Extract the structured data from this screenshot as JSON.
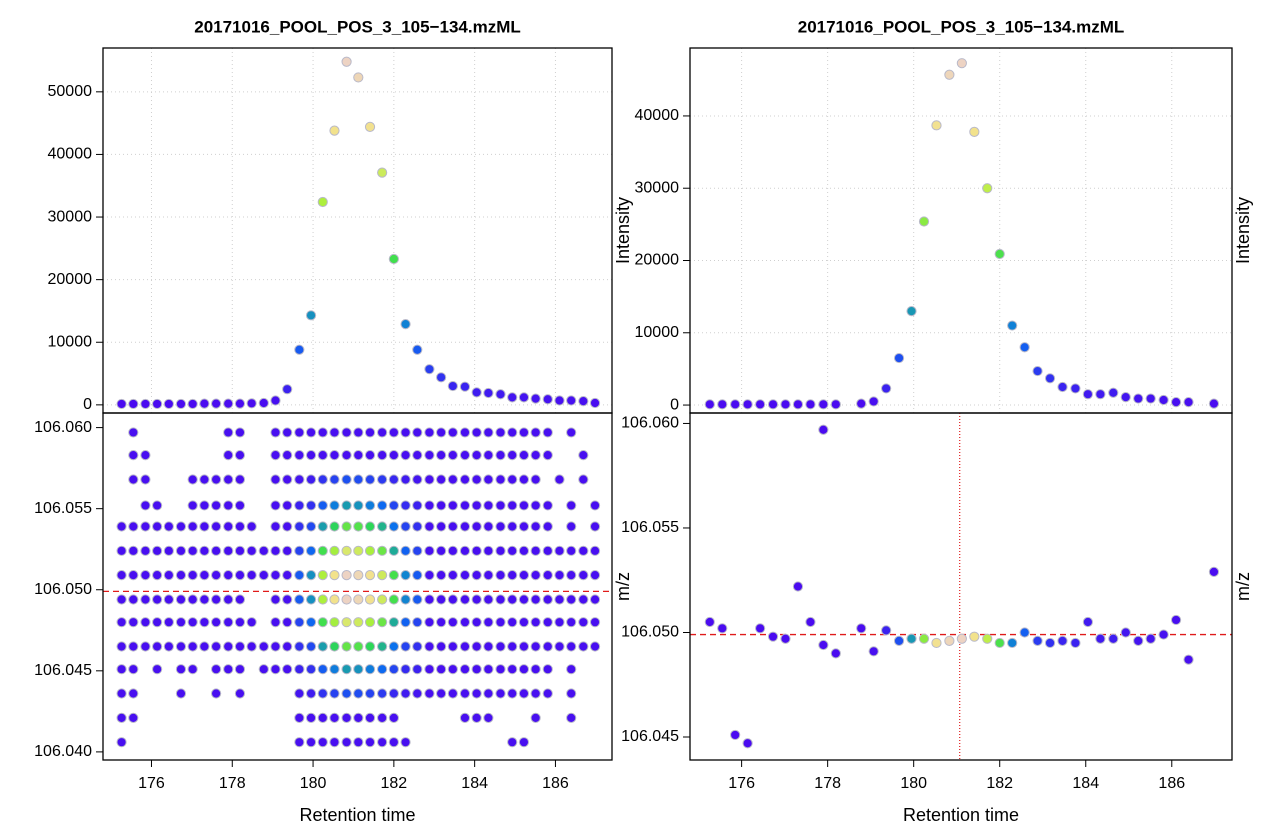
{
  "chart_data": [
    {
      "type": "scatter",
      "title": "20171016_POOL_POS_3_105−134.mzML",
      "ylabel": "Intensity",
      "x": [
        175.26,
        175.55,
        175.85,
        176.14,
        176.43,
        176.73,
        177.02,
        177.31,
        177.6,
        177.9,
        178.19,
        178.48,
        178.78,
        179.07,
        179.36,
        179.66,
        179.95,
        180.24,
        180.53,
        180.83,
        181.12,
        181.41,
        181.71,
        182.0,
        182.29,
        182.58,
        182.88,
        183.17,
        183.46,
        183.76,
        184.05,
        184.34,
        184.64,
        184.93,
        185.22,
        185.51,
        185.81,
        186.1,
        186.39,
        186.69,
        186.98
      ],
      "y": [
        150,
        150,
        150,
        150,
        150,
        150,
        150,
        200,
        200,
        200,
        200,
        250,
        300,
        700,
        2500,
        8800,
        14300,
        32400,
        43800,
        54800,
        52300,
        44400,
        37100,
        23300,
        12900,
        8800,
        5700,
        4400,
        3000,
        2900,
        2000,
        1900,
        1700,
        1200,
        1200,
        1000,
        900,
        700,
        700,
        600,
        300
      ],
      "xlim": [
        174.8,
        187.4
      ],
      "xticks": [
        176,
        178,
        180,
        182,
        184,
        186
      ],
      "ylim": [
        -1300,
        57000
      ],
      "yticks": [
        0,
        10000,
        20000,
        30000,
        40000,
        50000
      ],
      "grid": true,
      "colormap": [
        "#4B0AF0",
        "#0A6EF0",
        "#30DC50",
        "#B4F03C",
        "#F2E28C",
        "#EDD3C3"
      ]
    },
    {
      "type": "scatter",
      "ylabel": "m/z",
      "xlabel": "Retention time",
      "x": [
        175.26,
        175.55,
        175.85,
        176.14,
        176.43,
        176.73,
        177.02,
        177.31,
        177.6,
        177.9,
        178.19,
        178.48,
        178.78,
        179.07,
        179.36,
        179.66,
        179.95,
        180.24,
        180.53,
        180.83,
        181.12,
        181.41,
        181.71,
        182.0,
        182.29,
        182.58,
        182.88,
        183.17,
        183.46,
        183.76,
        184.05,
        184.34,
        184.64,
        184.93,
        185.22,
        185.51,
        185.81,
        186.1,
        186.39,
        186.69,
        186.98
      ],
      "rows": [
        {
          "y": 106.0597,
          "intensity": [
            null,
            200,
            null,
            null,
            null,
            null,
            null,
            null,
            null,
            200,
            200,
            null,
            null,
            200,
            200,
            200,
            200,
            200,
            200,
            200,
            200,
            200,
            200,
            200,
            200,
            200,
            200,
            200,
            200,
            200,
            200,
            200,
            200,
            200,
            200,
            200,
            200,
            null,
            200,
            null,
            null,
            null
          ]
        },
        {
          "y": 106.0583,
          "intensity": [
            null,
            200,
            200,
            null,
            null,
            null,
            null,
            null,
            null,
            200,
            200,
            null,
            null,
            200,
            200,
            200,
            200,
            200,
            200,
            200,
            200,
            200,
            200,
            200,
            200,
            200,
            200,
            200,
            200,
            200,
            200,
            200,
            200,
            200,
            200,
            200,
            200,
            null,
            null,
            200,
            null,
            null
          ]
        },
        {
          "y": 106.0568,
          "intensity": [
            null,
            200,
            200,
            null,
            null,
            null,
            200,
            200,
            200,
            200,
            200,
            null,
            null,
            200,
            200,
            450,
            730,
            1650,
            2240,
            2800,
            2660,
            2270,
            1900,
            1200,
            670,
            450,
            200,
            200,
            200,
            200,
            200,
            200,
            200,
            200,
            200,
            200,
            null,
            200,
            null,
            200,
            null
          ]
        },
        {
          "y": 106.0552,
          "intensity": [
            null,
            null,
            200,
            200,
            null,
            null,
            200,
            200,
            200,
            200,
            200,
            null,
            null,
            200,
            200,
            900,
            1500,
            3300,
            4500,
            5600,
            5300,
            4500,
            3800,
            2400,
            1300,
            900,
            200,
            200,
            200,
            200,
            200,
            200,
            200,
            200,
            200,
            200,
            200,
            null,
            200,
            null,
            200
          ]
        },
        {
          "y": 106.0539,
          "intensity": [
            200,
            200,
            200,
            200,
            200,
            200,
            200,
            200,
            200,
            200,
            200,
            200,
            null,
            200,
            200,
            1500,
            2500,
            5700,
            7700,
            9600,
            9100,
            7800,
            6500,
            4100,
            2300,
            1500,
            200,
            200,
            200,
            200,
            200,
            200,
            200,
            200,
            200,
            200,
            200,
            null,
            200,
            null,
            200
          ]
        },
        {
          "y": 106.0524,
          "intensity": [
            200,
            200,
            200,
            200,
            200,
            200,
            200,
            200,
            200,
            200,
            200,
            200,
            200,
            200,
            200,
            2300,
            3700,
            8500,
            11500,
            14400,
            13700,
            11700,
            9800,
            6200,
            3500,
            2300,
            200,
            200,
            200,
            200,
            200,
            200,
            200,
            200,
            200,
            200,
            200,
            200,
            200,
            200,
            200
          ]
        },
        {
          "y": 106.0509,
          "intensity": [
            200,
            200,
            200,
            200,
            200,
            200,
            200,
            200,
            200,
            200,
            200,
            200,
            200,
            200,
            200,
            3200,
            5200,
            11800,
            16000,
            20000,
            19000,
            16200,
            13600,
            8600,
            4800,
            3200,
            200,
            200,
            200,
            200,
            200,
            200,
            200,
            200,
            200,
            200,
            200,
            200,
            200,
            200,
            200
          ]
        },
        {
          "y": 106.0494,
          "intensity": [
            200,
            200,
            200,
            200,
            200,
            200,
            200,
            200,
            200,
            200,
            200,
            null,
            null,
            200,
            200,
            3200,
            5200,
            11800,
            16000,
            20000,
            19000,
            16200,
            13600,
            8600,
            4800,
            3200,
            200,
            200,
            200,
            200,
            200,
            200,
            200,
            200,
            200,
            200,
            200,
            200,
            200,
            200,
            200
          ]
        },
        {
          "y": 106.048,
          "intensity": [
            200,
            200,
            200,
            200,
            200,
            200,
            200,
            200,
            200,
            200,
            200,
            200,
            null,
            200,
            200,
            2300,
            3700,
            8500,
            11500,
            14400,
            13700,
            11700,
            9800,
            6200,
            3500,
            2300,
            200,
            200,
            200,
            200,
            200,
            200,
            200,
            200,
            200,
            200,
            200,
            200,
            200,
            200,
            200
          ]
        },
        {
          "y": 106.0465,
          "intensity": [
            200,
            200,
            200,
            200,
            200,
            200,
            200,
            200,
            200,
            200,
            200,
            200,
            200,
            200,
            200,
            1500,
            2500,
            5700,
            7700,
            9600,
            9100,
            7800,
            6500,
            4100,
            2300,
            1500,
            200,
            200,
            200,
            200,
            200,
            200,
            200,
            200,
            200,
            200,
            200,
            200,
            200,
            200,
            200
          ]
        },
        {
          "y": 106.0451,
          "intensity": [
            200,
            200,
            null,
            200,
            null,
            200,
            200,
            null,
            200,
            200,
            200,
            null,
            200,
            200,
            200,
            900,
            1500,
            3300,
            4500,
            5600,
            5300,
            4500,
            3800,
            2400,
            1300,
            900,
            200,
            200,
            200,
            200,
            200,
            200,
            200,
            200,
            200,
            200,
            200,
            null,
            200,
            null,
            null
          ]
        },
        {
          "y": 106.0436,
          "intensity": [
            200,
            200,
            null,
            null,
            null,
            200,
            null,
            null,
            200,
            null,
            200,
            null,
            null,
            null,
            null,
            450,
            730,
            1650,
            2240,
            2800,
            2660,
            2270,
            1900,
            1200,
            670,
            450,
            200,
            200,
            200,
            200,
            200,
            200,
            200,
            200,
            200,
            200,
            200,
            null,
            200,
            null,
            null
          ]
        },
        {
          "y": 106.0421,
          "intensity": [
            200,
            200,
            null,
            null,
            null,
            null,
            null,
            null,
            null,
            null,
            null,
            null,
            null,
            null,
            null,
            200,
            200,
            200,
            200,
            200,
            200,
            200,
            200,
            200,
            null,
            null,
            null,
            null,
            null,
            200,
            200,
            200,
            null,
            null,
            null,
            200,
            null,
            null,
            200,
            null,
            null
          ]
        },
        {
          "y": 106.0406,
          "intensity": [
            200,
            null,
            null,
            null,
            null,
            null,
            null,
            null,
            null,
            null,
            null,
            null,
            null,
            null,
            null,
            200,
            200,
            200,
            200,
            200,
            200,
            200,
            200,
            200,
            200,
            null,
            null,
            null,
            null,
            null,
            null,
            null,
            null,
            200,
            200,
            null,
            null,
            null,
            null,
            null,
            null
          ]
        }
      ],
      "xlim": [
        174.8,
        187.4
      ],
      "xticks": [
        176,
        178,
        180,
        182,
        184,
        186
      ],
      "ylim": [
        106.0395,
        106.0609
      ],
      "yticks": [
        {
          "value": 106.04,
          "label": "106.040"
        },
        106.045,
        {
          "value": 106.05,
          "label": "106.050"
        },
        106.055,
        {
          "value": 106.06,
          "label": "106.060"
        }
      ],
      "hline": 106.0499,
      "colormap": [
        "#4B0AF0",
        "#0A6EF0",
        "#30DC50",
        "#B4F03C",
        "#F2E28C",
        "#EDD3C3"
      ]
    },
    {
      "type": "scatter",
      "title": "20171016_POOL_POS_3_105−134.mzML",
      "ylabel": "Intensity",
      "x": [
        175.26,
        175.55,
        175.85,
        176.14,
        176.43,
        176.73,
        177.02,
        177.31,
        177.6,
        177.9,
        178.19,
        178.78,
        179.07,
        179.36,
        179.66,
        179.95,
        180.24,
        180.53,
        180.83,
        181.12,
        181.41,
        181.71,
        182.0,
        182.29,
        182.58,
        182.88,
        183.17,
        183.46,
        183.76,
        184.05,
        184.34,
        184.64,
        184.93,
        185.22,
        185.51,
        185.81,
        186.1,
        186.39,
        186.98
      ],
      "y": [
        100,
        100,
        100,
        100,
        100,
        100,
        100,
        100,
        100,
        100,
        100,
        200,
        500,
        2300,
        6500,
        13000,
        25400,
        38700,
        45700,
        47300,
        37800,
        30000,
        20900,
        11000,
        8000,
        4700,
        3700,
        2500,
        2300,
        1500,
        1500,
        1700,
        1100,
        900,
        900,
        700,
        400,
        400,
        200
      ],
      "xlim": [
        174.8,
        187.4
      ],
      "xticks": [
        176,
        178,
        180,
        182,
        184,
        186
      ],
      "ylim": [
        -1100,
        49400
      ],
      "yticks": [
        0,
        10000,
        20000,
        30000,
        40000
      ],
      "grid": true,
      "colormap": [
        "#4B0AF0",
        "#0A6EF0",
        "#30DC50",
        "#B4F03C",
        "#F2E28C",
        "#EDD3C3"
      ]
    },
    {
      "type": "scatter",
      "ylabel": "m/z",
      "xlabel": "Retention time",
      "x": [
        175.26,
        175.55,
        175.85,
        176.14,
        176.43,
        176.73,
        177.02,
        177.31,
        177.6,
        177.9,
        177.9,
        178.19,
        178.78,
        179.07,
        179.36,
        179.66,
        179.95,
        180.24,
        180.53,
        180.83,
        181.12,
        181.41,
        181.71,
        182.0,
        182.29,
        182.58,
        182.88,
        183.17,
        183.46,
        183.76,
        184.05,
        184.34,
        184.64,
        184.93,
        185.22,
        185.51,
        185.81,
        186.1,
        186.39,
        186.98
      ],
      "y": [
        106.0505,
        106.0502,
        106.0451,
        106.0447,
        106.0502,
        106.0498,
        106.0497,
        106.0522,
        106.0505,
        106.0597,
        106.0494,
        106.049,
        106.0502,
        106.0491,
        106.0501,
        106.0496,
        106.0497,
        106.0497,
        106.0495,
        106.0496,
        106.0497,
        106.0498,
        106.0497,
        106.0495,
        106.0495,
        106.05,
        106.0496,
        106.0495,
        106.0496,
        106.0495,
        106.0505,
        106.0497,
        106.0497,
        106.05,
        106.0496,
        106.0497,
        106.0499,
        106.0506,
        106.0487,
        106.0529
      ],
      "intensity": [
        100,
        100,
        100,
        100,
        100,
        100,
        100,
        100,
        100,
        100,
        100,
        100,
        200,
        500,
        2300,
        6500,
        13000,
        25400,
        38700,
        45700,
        47300,
        37800,
        30000,
        20900,
        11000,
        8000,
        4700,
        3700,
        2500,
        2300,
        1500,
        1500,
        1700,
        1100,
        900,
        900,
        700,
        400,
        400,
        200
      ],
      "xlim": [
        174.8,
        187.4
      ],
      "xticks": [
        176,
        178,
        180,
        182,
        184,
        186
      ],
      "ylim": [
        106.0439,
        106.0605
      ],
      "yticks": [
        106.045,
        {
          "value": 106.05,
          "label": "106.050"
        },
        106.055,
        {
          "value": 106.06,
          "label": "106.060"
        }
      ],
      "hline": 106.0499,
      "vline": 181.07,
      "colormap": [
        "#4B0AF0",
        "#0A6EF0",
        "#30DC50",
        "#B4F03C",
        "#F2E28C",
        "#EDD3C3"
      ]
    }
  ]
}
